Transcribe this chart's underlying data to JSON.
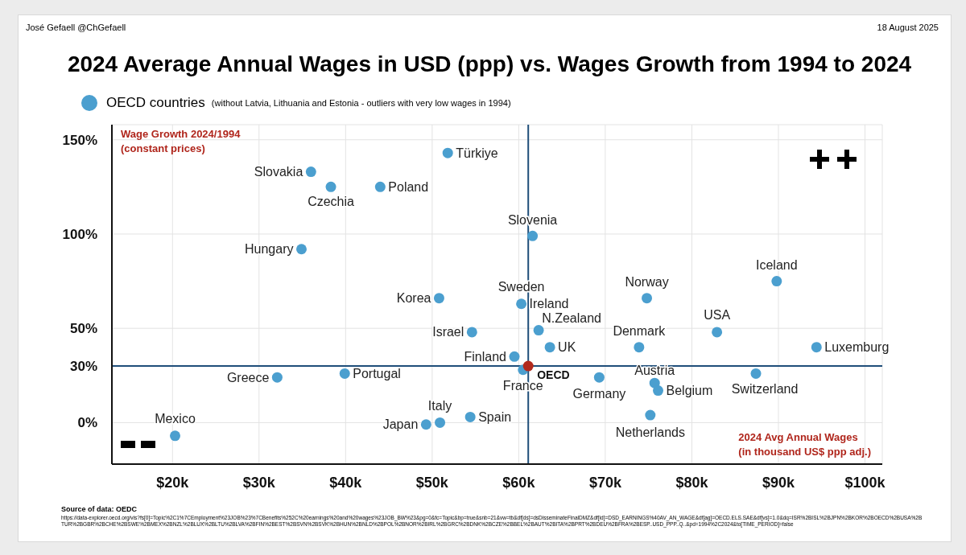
{
  "chart_data": {
    "type": "scatter",
    "title": "2024 Average Annual Wages in USD (ppp) vs. Wages Growth from 1994 to 2024",
    "xlabel": "2024 Avg Annual Wages\n(in thousand US$ ppp adj.)",
    "ylabel": "Wage Growth 2024/1994\n(constant prices)",
    "xlim": [
      13,
      102
    ],
    "ylim": [
      -22,
      158
    ],
    "xticks": [
      {
        "value": 20,
        "label": "$20k"
      },
      {
        "value": 30,
        "label": "$30k"
      },
      {
        "value": 40,
        "label": "$40k"
      },
      {
        "value": 50,
        "label": "$50k"
      },
      {
        "value": 60,
        "label": "$60k"
      },
      {
        "value": 70,
        "label": "$70k"
      },
      {
        "value": 80,
        "label": "$80k"
      },
      {
        "value": 90,
        "label": "$90k"
      },
      {
        "value": 100,
        "label": "$100k"
      }
    ],
    "yticks": [
      {
        "value": 0,
        "label": "0%"
      },
      {
        "value": 30,
        "label": "30%"
      },
      {
        "value": 50,
        "label": "50%"
      },
      {
        "value": 100,
        "label": "100%"
      },
      {
        "value": 150,
        "label": "150%"
      }
    ],
    "grid": true,
    "legend": "top left",
    "marker": "circle",
    "series": [
      {
        "name": "OECD countries",
        "color": "#4b9fcf",
        "x": [
          51.8,
          36.0,
          38.3,
          44.0,
          61.6,
          34.9,
          89.8,
          74.8,
          50.8,
          60.3,
          null,
          62.3,
          82.9,
          54.6,
          73.9,
          63.6,
          94.4,
          59.5,
          60.5,
          39.9,
          32.1,
          69.3,
          87.4,
          75.7,
          76.1,
          75.2,
          54.4,
          50.9,
          49.3,
          20.3
        ],
        "values": [
          143,
          133,
          125,
          125,
          99,
          92,
          75,
          66,
          66,
          63,
          null,
          49,
          48,
          48,
          40,
          40,
          40,
          35,
          28,
          26,
          24,
          24,
          26,
          21,
          17,
          4,
          3,
          0,
          -1,
          -7
        ]
      },
      {
        "name": "OECD",
        "color": "#b22a1d",
        "x": [
          61.1
        ],
        "values": [
          30
        ]
      }
    ],
    "ref_lines": [
      {
        "axis": "x",
        "value": 61.1,
        "color": "#1f4e79"
      },
      {
        "axis": "y",
        "value": 30,
        "color": "#1f4e79"
      }
    ],
    "annotations": [
      {
        "text": "Türkiye",
        "x": 51.8,
        "y": 143
      },
      {
        "text": "Slovakia",
        "x": 36.0,
        "y": 133
      },
      {
        "text": "Czechia",
        "x": 38.3,
        "y": 125
      },
      {
        "text": "Poland",
        "x": 44.0,
        "y": 125
      },
      {
        "text": "Slovenia",
        "x": 61.6,
        "y": 99
      },
      {
        "text": "Hungary",
        "x": 34.9,
        "y": 92
      },
      {
        "text": "Iceland",
        "x": 89.8,
        "y": 75
      },
      {
        "text": "Norway",
        "x": 74.8,
        "y": 66
      },
      {
        "text": "Korea",
        "x": 50.8,
        "y": 66
      },
      {
        "text": "Sweden",
        "x": 60.3,
        "y": 63
      },
      {
        "text": "Ireland",
        "x": 60.3,
        "y": 63
      },
      {
        "text": "N.Zealand",
        "x": 62.3,
        "y": 49
      },
      {
        "text": "USA",
        "x": 82.9,
        "y": 48
      },
      {
        "text": "Israel",
        "x": 54.6,
        "y": 48
      },
      {
        "text": "Denmark",
        "x": 73.9,
        "y": 40
      },
      {
        "text": "UK",
        "x": 63.6,
        "y": 40
      },
      {
        "text": "Luxemburg",
        "x": 94.4,
        "y": 40
      },
      {
        "text": "Finland",
        "x": 59.5,
        "y": 35
      },
      {
        "text": "France",
        "x": 60.5,
        "y": 28
      },
      {
        "text": "Portugal",
        "x": 39.9,
        "y": 26
      },
      {
        "text": "Greece",
        "x": 32.1,
        "y": 24
      },
      {
        "text": "Germany",
        "x": 69.3,
        "y": 24
      },
      {
        "text": "Switzerland",
        "x": 87.4,
        "y": 26
      },
      {
        "text": "Austria",
        "x": 75.7,
        "y": 21
      },
      {
        "text": "Belgium",
        "x": 76.1,
        "y": 17
      },
      {
        "text": "Netherlands",
        "x": 75.2,
        "y": 4
      },
      {
        "text": "Spain",
        "x": 54.4,
        "y": 3
      },
      {
        "text": "Italy",
        "x": 50.9,
        "y": 0
      },
      {
        "text": "Japan",
        "x": 49.3,
        "y": -1
      },
      {
        "text": "Mexico",
        "x": 20.3,
        "y": -7
      },
      "José Gefaell @ChGefaell",
      "18 August 2025",
      "(without Latvia, Lithuania and Estonia - outliers with very low wages in 1994)",
      "Source of data: OEDC",
      "https://data-explorer.oecd.org/vis?fs[0]=Topic%2C1%7CEmployment%23JOB%23%7CBenefits%252C%20earnings%20and%20wages%23JOB_BW%23&pg=0&fc=Topic&bp=true&snb=21&vw=tb&df[ds]=dsDisseminateFinalDMZ&df[id]=DSD_EARNINGS%40AV_AN_WAGE&df[ag]=OECD.ELS.SAE&df[vs]=1.0&dq=ISR%2BISL%2BJPN%2BKOR%2BOECD%2BUSA%2BTUR%2BGBR%2BCHE%2BSWE%2BMEX%2BNZL%2BLUX%2BLTU%2BLVA%2BFIN%2BEST%2BSVN%2BSVK%2BHUN%2BNLD%2BPOL%2BNOR%2BIRL%2BGRC%2BDNK%2BCZE%2BBEL%2BAUT%2BITA%2BPRT%2BDEU%2BFRA%2BESP..USD_PPP..Q..&pd=1994%2C2024&to[TIME_PERIOD]=false"
    ]
  }
}
